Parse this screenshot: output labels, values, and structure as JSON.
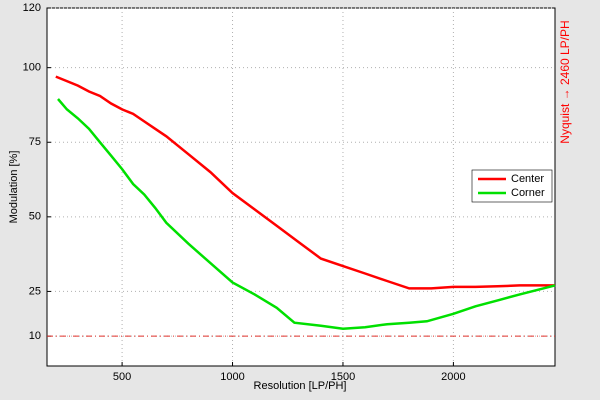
{
  "chart_data": {
    "type": "line",
    "xlabel": "Resolution [LP/PH]",
    "ylabel": "Modulation [%]",
    "annotation": "Nyquist → 2460 LP/PH",
    "reference_line": 10,
    "reference_color": "#e0302a",
    "xlim": [
      160,
      2460
    ],
    "ylim": [
      0,
      120
    ],
    "xticks": [
      500,
      1000,
      1500,
      2000
    ],
    "yticks": [
      10,
      25,
      50,
      75,
      100,
      120
    ],
    "grid": true,
    "legend": "right",
    "series": [
      {
        "name": "Center",
        "color": "#ff0000",
        "x": [
          200,
          250,
          300,
          350,
          400,
          450,
          500,
          550,
          600,
          650,
          700,
          800,
          900,
          1000,
          1100,
          1200,
          1300,
          1400,
          1500,
          1600,
          1700,
          1800,
          1900,
          2000,
          2100,
          2200,
          2300,
          2460
        ],
        "values": [
          97,
          95.5,
          94,
          92,
          90.5,
          88,
          86,
          84.5,
          82,
          79.5,
          77,
          71,
          65,
          58,
          52.5,
          47,
          41.5,
          36,
          33.5,
          31,
          28.5,
          26,
          26,
          26.5,
          26.5,
          26.7,
          27,
          27
        ]
      },
      {
        "name": "Corner",
        "color": "#00e000",
        "x": [
          210,
          250,
          300,
          350,
          400,
          450,
          500,
          550,
          600,
          650,
          700,
          800,
          900,
          1000,
          1100,
          1200,
          1280,
          1400,
          1500,
          1600,
          1700,
          1800,
          1880,
          2000,
          2100,
          2200,
          2300,
          2460
        ],
        "values": [
          89.5,
          86,
          83,
          79.5,
          75,
          70.5,
          66,
          61,
          57.5,
          53,
          48,
          41,
          34.5,
          28,
          24,
          19.5,
          14.5,
          13.5,
          12.5,
          13,
          14,
          14.5,
          15,
          17.5,
          20,
          22,
          24,
          27
        ]
      }
    ]
  }
}
